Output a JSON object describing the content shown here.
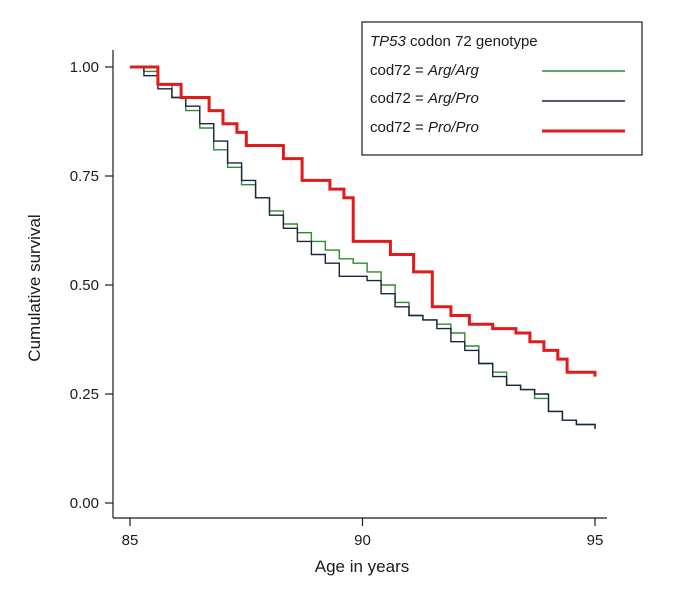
{
  "chart_data": {
    "type": "line",
    "step": true,
    "xlabel": "Age in years",
    "ylabel": "Cumulative survival",
    "xlim": [
      85,
      95
    ],
    "ylim": [
      0,
      1
    ],
    "x_ticks": [
      "85",
      "90",
      "95"
    ],
    "x_tick_values": [
      85,
      90,
      95
    ],
    "y_ticks": [
      "0.00",
      "0.25",
      "0.50",
      "0.75",
      "1.00"
    ],
    "y_tick_values": [
      0,
      0.25,
      0.5,
      0.75,
      1.0
    ],
    "grid": false,
    "legend": {
      "placement": "top-right",
      "title_italic": "TP53",
      "title_rest": " codon 72 genotype",
      "entries": [
        {
          "prefix": "cod72 = ",
          "genotype": "Arg/Arg"
        },
        {
          "prefix": "cod72 = ",
          "genotype": "Arg/Pro"
        },
        {
          "prefix": "cod72 = ",
          "genotype": "Pro/Pro"
        }
      ]
    },
    "series": [
      {
        "color": "#2e8b2e",
        "width": 1.4,
        "x": [
          85.0,
          85.3,
          85.6,
          85.9,
          86.2,
          86.5,
          86.8,
          87.1,
          87.4,
          87.7,
          88.0,
          88.3,
          88.6,
          88.9,
          89.2,
          89.5,
          89.8,
          90.1,
          90.4,
          90.7,
          91.0,
          91.3,
          91.6,
          91.9,
          92.2,
          92.5,
          92.8,
          93.1,
          93.4,
          93.7,
          94.0,
          94.3,
          94.6,
          95.0
        ],
        "y": [
          1.0,
          0.99,
          0.96,
          0.93,
          0.9,
          0.86,
          0.81,
          0.77,
          0.73,
          0.7,
          0.67,
          0.64,
          0.62,
          0.6,
          0.58,
          0.56,
          0.55,
          0.53,
          0.5,
          0.46,
          0.43,
          0.42,
          0.41,
          0.39,
          0.36,
          0.32,
          0.3,
          0.27,
          0.26,
          0.24,
          0.21,
          0.19,
          0.18,
          0.17
        ]
      },
      {
        "color": "#1c2440",
        "width": 1.4,
        "x": [
          85.0,
          85.3,
          85.6,
          85.9,
          86.2,
          86.5,
          86.8,
          87.1,
          87.4,
          87.7,
          88.0,
          88.3,
          88.6,
          88.9,
          89.2,
          89.5,
          89.8,
          90.1,
          90.4,
          90.7,
          91.0,
          91.3,
          91.6,
          91.9,
          92.2,
          92.5,
          92.8,
          93.1,
          93.4,
          93.7,
          94.0,
          94.3,
          94.6,
          95.0
        ],
        "y": [
          1.0,
          0.98,
          0.95,
          0.93,
          0.91,
          0.87,
          0.83,
          0.78,
          0.74,
          0.7,
          0.66,
          0.63,
          0.6,
          0.57,
          0.55,
          0.52,
          0.52,
          0.51,
          0.48,
          0.45,
          0.43,
          0.42,
          0.4,
          0.37,
          0.35,
          0.32,
          0.29,
          0.27,
          0.26,
          0.25,
          0.21,
          0.19,
          0.18,
          0.17
        ]
      },
      {
        "color": "#e01b1b",
        "width": 3,
        "x": [
          85.0,
          85.6,
          86.1,
          86.7,
          87.0,
          87.3,
          87.5,
          88.3,
          88.7,
          89.3,
          89.6,
          89.8,
          90.6,
          91.1,
          91.5,
          91.9,
          92.3,
          92.8,
          93.3,
          93.6,
          93.9,
          94.2,
          94.4,
          95.0
        ],
        "y": [
          1.0,
          0.96,
          0.93,
          0.9,
          0.87,
          0.85,
          0.82,
          0.79,
          0.74,
          0.72,
          0.7,
          0.6,
          0.57,
          0.53,
          0.45,
          0.43,
          0.41,
          0.4,
          0.39,
          0.37,
          0.35,
          0.33,
          0.3,
          0.29
        ]
      }
    ]
  }
}
